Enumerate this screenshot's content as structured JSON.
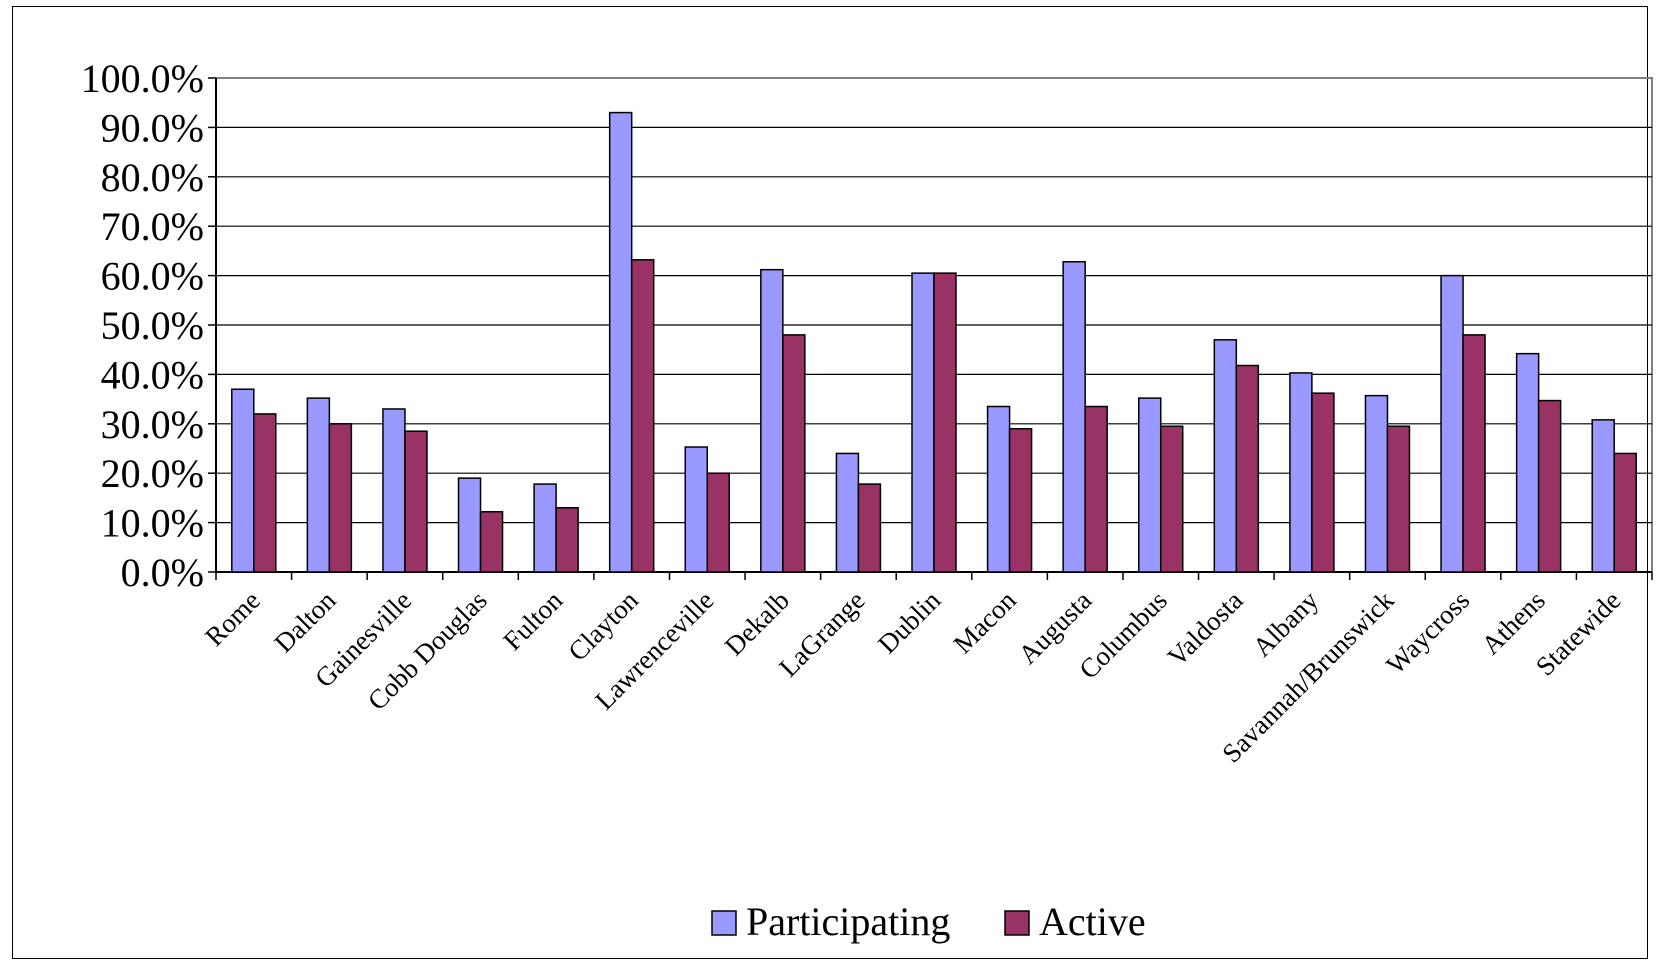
{
  "chart_data": {
    "type": "bar",
    "categories": [
      "Rome",
      "Dalton",
      "Gainesville",
      "Cobb Douglas",
      "Fulton",
      "Clayton",
      "Lawrenceville",
      "Dekalb",
      "LaGrange",
      "Dublin",
      "Macon",
      "Augusta",
      "Columbus",
      "Valdosta",
      "Albany",
      "Savannah/Brunswick",
      "Waycross",
      "Athens",
      "Statewide"
    ],
    "series": [
      {
        "name": "Participating",
        "values": [
          37.0,
          35.2,
          33.0,
          19.0,
          17.8,
          93.0,
          25.3,
          61.2,
          24.0,
          60.5,
          33.5,
          62.8,
          35.2,
          47.0,
          40.3,
          35.7,
          60.0,
          44.2,
          30.8
        ]
      },
      {
        "name": "Active",
        "values": [
          32.0,
          30.0,
          28.5,
          12.2,
          13.0,
          63.2,
          20.0,
          48.0,
          17.8,
          60.5,
          29.0,
          33.5,
          29.5,
          41.8,
          36.2,
          29.5,
          48.0,
          34.7,
          24.0
        ]
      }
    ],
    "ylim": [
      0,
      100
    ],
    "yticks": [
      "0.0%",
      "10.0%",
      "20.0%",
      "30.0%",
      "40.0%",
      "50.0%",
      "60.0%",
      "70.0%",
      "80.0%",
      "90.0%",
      "100.0%"
    ],
    "colors": {
      "Participating": "#9999ff",
      "Active": "#993366",
      "grid": "#000000",
      "plot_border": "#808080"
    },
    "grid": true,
    "legend_position": "bottom"
  }
}
